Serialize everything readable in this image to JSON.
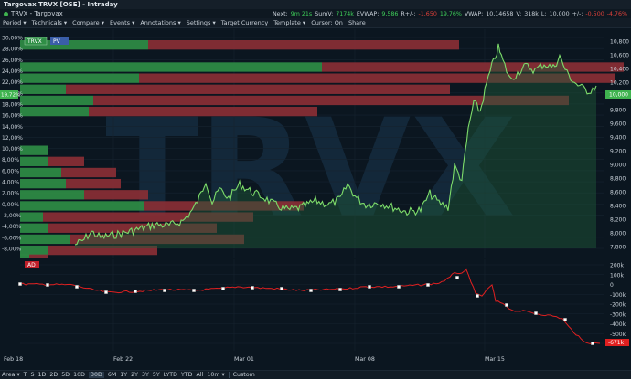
{
  "window": {
    "title": "Targovax TRVX [OSE] - Intraday"
  },
  "instrument": {
    "label": "TRVX - Targovax",
    "watermark": "TRVX"
  },
  "stats": [
    {
      "label": "Next:",
      "value": "9m 21s",
      "cls": "g"
    },
    {
      "label": "SumV:",
      "value": "7174k",
      "cls": "g"
    },
    {
      "label": "EVWAP:",
      "value": "9,586",
      "cls": "g"
    },
    {
      "label": "R+/-:",
      "value": "-1,650",
      "cls": "r"
    },
    {
      "label": "",
      "value": "19,76%",
      "cls": "g"
    },
    {
      "label": "VWAP:",
      "value": "10,14658",
      "cls": ""
    },
    {
      "label": "V:",
      "value": "318k",
      "cls": ""
    },
    {
      "label": "L:",
      "value": "10,000",
      "cls": ""
    },
    {
      "label": "+/-:",
      "value": "-0,500",
      "cls": "r"
    },
    {
      "label": "",
      "value": "-4,76%",
      "cls": "r"
    }
  ],
  "menu": [
    "Period ▾",
    "Technicals ▾",
    "Compare ▾",
    "Events ▾",
    "Annotations ▾",
    "Settings ▾",
    "Target Currency",
    "Template ▾",
    "Cursor: On",
    "Share"
  ],
  "badges": {
    "trvx": "TRVX",
    "pv": "PV",
    "ad": "AD",
    "price_tag": "10,000",
    "pct_tag": "19,72%",
    "ad_tag": "-671k"
  },
  "pct_axis": [
    "30,00%",
    "28,00%",
    "26,00%",
    "24,00%",
    "22,00%",
    "20,00%",
    "18,00%",
    "16,00%",
    "14,00%",
    "12,00%",
    "10,00%",
    "8,00%",
    "6,00%",
    "4,00%",
    "2,00%",
    "0,00%",
    "-2,00%",
    "-4,00%",
    "-6,00%",
    "-8,00%"
  ],
  "price_axis": [
    "10,800",
    "10,600",
    "10,400",
    "10,200",
    "10,000",
    "9,800",
    "9,600",
    "9,400",
    "9,200",
    "9,000",
    "8,800",
    "8,600",
    "8,400",
    "8,200",
    "8,000",
    "7,800"
  ],
  "ad_axis": [
    "200k",
    "100k",
    "0",
    "-100k",
    "-200k",
    "-300k",
    "-400k",
    "-500k",
    "-600k"
  ],
  "x_labels": [
    "Feb 18",
    "Feb 22",
    "Mar 01",
    "Mar 08",
    "Mar 15"
  ],
  "bottom": [
    "Area ▾",
    "T",
    "S",
    "1D",
    "2D",
    "5D",
    "10D",
    "30D",
    "6M",
    "1Y",
    "2Y",
    "3Y",
    "5Y",
    "LYTD",
    "YTD",
    "All",
    "10m ▾",
    "Custom"
  ],
  "bottom_selected": "30D",
  "colors": {
    "up": "#2f8f46",
    "down": "#8c2f35",
    "line": "#7ddc6a",
    "ad": "#e02020"
  }
}
